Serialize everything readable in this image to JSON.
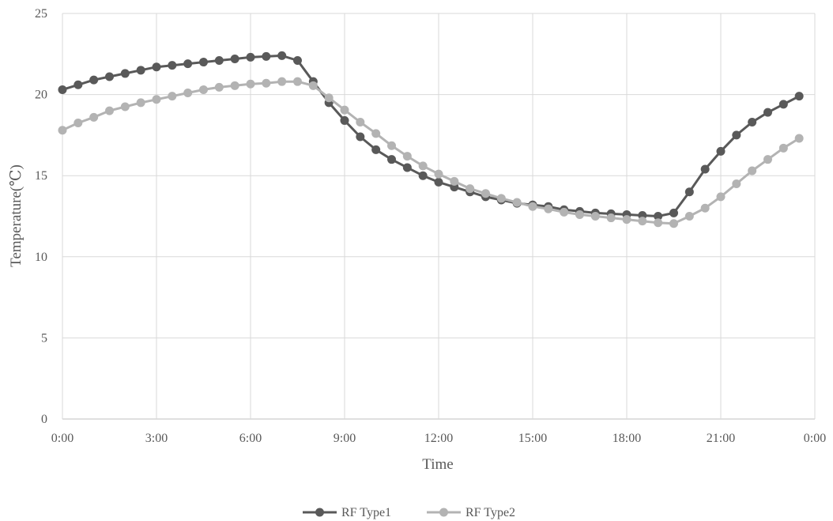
{
  "chart_data": {
    "type": "line",
    "title": "",
    "xlabel": "Time",
    "ylabel": "Temperature(℃)",
    "ylim": [
      0,
      25
    ],
    "yticks": [
      "0",
      "5",
      "10",
      "15",
      "20",
      "25"
    ],
    "xlim": [
      0,
      24
    ],
    "xticks": [
      "0:00",
      "3:00",
      "6:00",
      "9:00",
      "12:00",
      "15:00",
      "18:00",
      "21:00",
      "0:00"
    ],
    "grid": true,
    "legend_position": "bottom-center",
    "x": [
      0,
      0.5,
      1,
      1.5,
      2,
      2.5,
      3,
      3.5,
      4,
      4.5,
      5,
      5.5,
      6,
      6.5,
      7,
      7.5,
      8,
      8.5,
      9,
      9.5,
      10,
      10.5,
      11,
      11.5,
      12,
      12.5,
      13,
      13.5,
      14,
      14.5,
      15,
      15.5,
      16,
      16.5,
      17,
      17.5,
      18,
      18.5,
      19,
      19.5,
      20,
      20.5,
      21,
      21.5,
      22,
      22.5,
      23,
      23.5
    ],
    "series": [
      {
        "name": "RF Type1",
        "color": "#595959",
        "values": [
          20.3,
          20.6,
          20.9,
          21.1,
          21.3,
          21.5,
          21.7,
          21.8,
          21.9,
          22.0,
          22.1,
          22.2,
          22.3,
          22.35,
          22.4,
          22.1,
          20.8,
          19.5,
          18.4,
          17.4,
          16.6,
          16.0,
          15.5,
          15.0,
          14.6,
          14.3,
          14.0,
          13.7,
          13.5,
          13.3,
          13.2,
          13.1,
          12.9,
          12.8,
          12.7,
          12.65,
          12.6,
          12.55,
          12.5,
          12.7,
          14.0,
          15.4,
          16.5,
          17.5,
          18.3,
          18.9,
          19.4,
          19.9
        ]
      },
      {
        "name": "RF Type2",
        "color": "#b3b3b3",
        "values": [
          17.8,
          18.25,
          18.6,
          19.0,
          19.25,
          19.5,
          19.7,
          19.9,
          20.1,
          20.3,
          20.45,
          20.55,
          20.65,
          20.7,
          20.8,
          20.8,
          20.55,
          19.8,
          19.05,
          18.3,
          17.6,
          16.85,
          16.2,
          15.6,
          15.1,
          14.65,
          14.2,
          13.9,
          13.6,
          13.35,
          13.1,
          12.95,
          12.75,
          12.6,
          12.5,
          12.4,
          12.3,
          12.2,
          12.1,
          12.05,
          12.5,
          13.0,
          13.7,
          14.5,
          15.3,
          16.0,
          16.7,
          17.3
        ]
      }
    ]
  }
}
